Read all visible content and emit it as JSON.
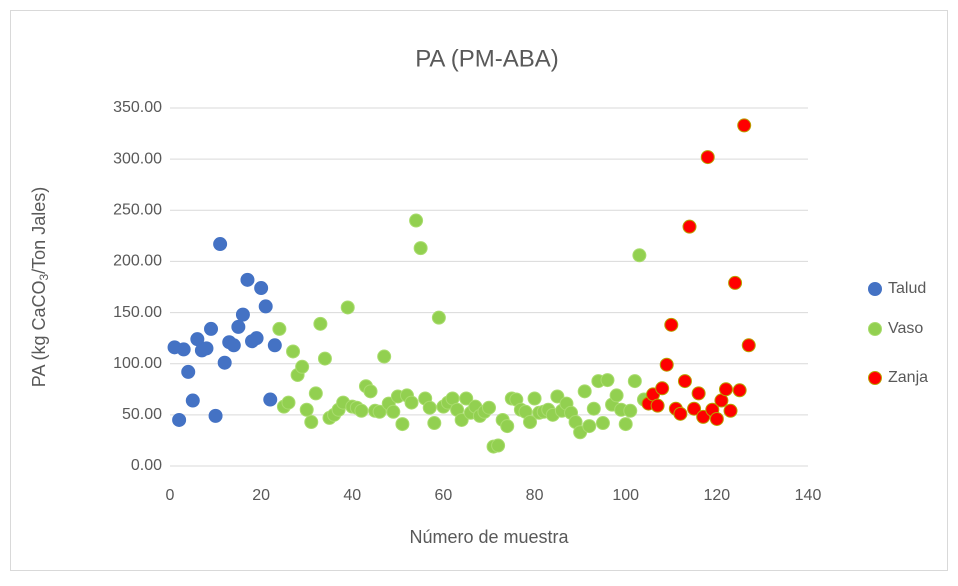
{
  "chart_data": {
    "type": "scatter",
    "title": "PA (PM-ABA)",
    "xlabel": "Número de muestra",
    "ylabel_parts": [
      "PA (kg CaCO",
      "3",
      "/Ton Jales)"
    ],
    "xlim": [
      0,
      140
    ],
    "xticks": [
      0,
      20,
      40,
      60,
      80,
      100,
      120,
      140
    ],
    "ylim": [
      0,
      350
    ],
    "yticks": [
      {
        "value": 0,
        "label": "0.00"
      },
      {
        "value": 50,
        "label": "50.00"
      },
      {
        "value": 100,
        "label": "100.00"
      },
      {
        "value": 150,
        "label": "150.00"
      },
      {
        "value": 200,
        "label": "200.00"
      },
      {
        "value": 250,
        "label": "250.00"
      },
      {
        "value": 300,
        "label": "300.00"
      },
      {
        "value": 350,
        "label": "350.00"
      }
    ],
    "grid": true,
    "legend": "right",
    "series": [
      {
        "name": "Talud",
        "color": "#4472c4",
        "edge": "#4472c4",
        "x": [
          1,
          2,
          3,
          4,
          5,
          6,
          7,
          8,
          9,
          10,
          11,
          12,
          13,
          14,
          15,
          16,
          17,
          18,
          19,
          20,
          21,
          22,
          23
        ],
        "values": [
          116,
          45,
          114,
          92,
          64,
          124,
          113,
          115,
          134,
          49,
          217,
          101,
          121,
          118,
          136,
          148,
          182,
          122,
          125,
          174,
          156,
          65,
          118
        ]
      },
      {
        "name": "Vaso",
        "color": "#92d050",
        "edge": "#a9dc6e",
        "x": [
          24,
          25,
          26,
          27,
          28,
          29,
          30,
          31,
          32,
          33,
          34,
          35,
          36,
          37,
          38,
          39,
          40,
          41,
          42,
          43,
          44,
          45,
          46,
          47,
          48,
          49,
          50,
          51,
          52,
          53,
          54,
          55,
          56,
          57,
          58,
          59,
          60,
          61,
          62,
          63,
          64,
          65,
          66,
          67,
          68,
          69,
          70,
          71,
          72,
          73,
          74,
          75,
          76,
          77,
          78,
          79,
          80,
          81,
          82,
          83,
          84,
          85,
          86,
          87,
          88,
          89,
          90,
          91,
          92,
          93,
          94,
          95,
          96,
          97,
          98,
          99,
          100,
          101,
          102,
          103,
          104
        ],
        "values": [
          134,
          58,
          62,
          112,
          89,
          97,
          55,
          43,
          71,
          139,
          105,
          47,
          50,
          55,
          62,
          155,
          58,
          57,
          54,
          78,
          73,
          54,
          53,
          107,
          61,
          53,
          68,
          41,
          69,
          62,
          240,
          213,
          66,
          57,
          42,
          145,
          58,
          62,
          66,
          55,
          45,
          66,
          52,
          58,
          49,
          53,
          57,
          19,
          20,
          45,
          39,
          66,
          65,
          55,
          53,
          43,
          66,
          52,
          53,
          55,
          50,
          68,
          54,
          61,
          52,
          43,
          33,
          73,
          39,
          56,
          83,
          42,
          84,
          60,
          69,
          55,
          41,
          54,
          83,
          206,
          65
        ]
      },
      {
        "name": "Zanja",
        "color": "#ff0000",
        "edge": "#b8a000",
        "x": [
          105,
          106,
          107,
          108,
          109,
          110,
          111,
          112,
          113,
          114,
          115,
          116,
          117,
          118,
          119,
          120,
          121,
          122,
          123,
          124,
          125,
          126,
          127
        ],
        "values": [
          61,
          70,
          59,
          76,
          99,
          138,
          56,
          51,
          83,
          234,
          56,
          71,
          48,
          302,
          55,
          46,
          64,
          75,
          54,
          179,
          74,
          333,
          118
        ]
      }
    ]
  }
}
